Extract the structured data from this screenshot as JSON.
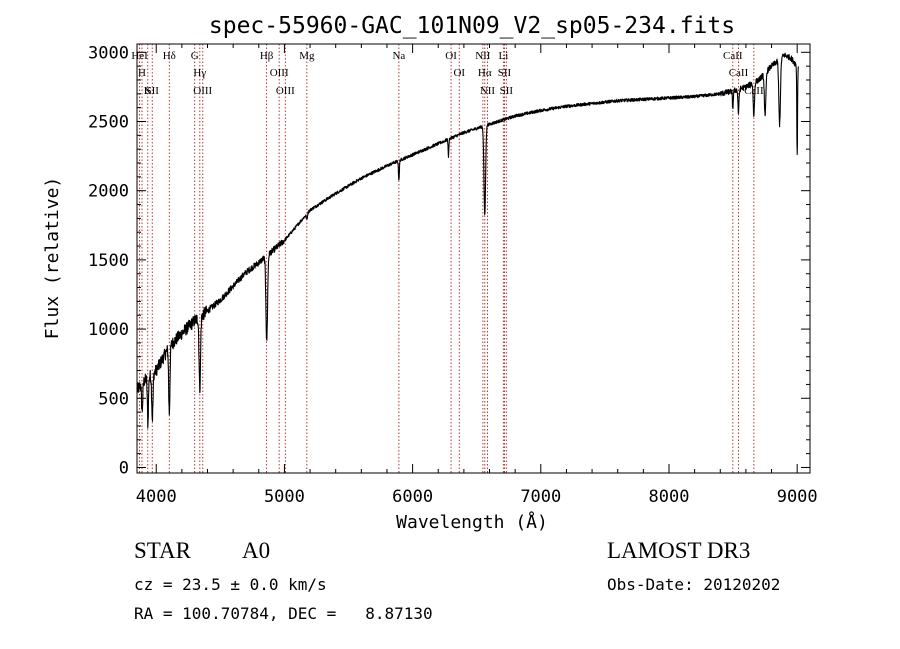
{
  "chart_data": {
    "type": "line",
    "title": "spec-55960-GAC_101N09_V2_sp05-234.fits",
    "xlabel": "Wavelength (Å)",
    "ylabel": "Flux (relative)",
    "xlim": [
      3850,
      9100
    ],
    "ylim": [
      -40,
      3060
    ],
    "x_ticks": [
      4000,
      5000,
      6000,
      7000,
      8000,
      9000
    ],
    "y_ticks": [
      0,
      500,
      1000,
      1500,
      2000,
      2500,
      3000
    ],
    "continuum": {
      "x": [
        3850,
        3900,
        4000,
        4100,
        4200,
        4300,
        4400,
        4500,
        4600,
        4700,
        4800,
        4900,
        5000,
        5100,
        5200,
        5400,
        5600,
        5800,
        6000,
        6200,
        6400,
        6500,
        6600,
        6700,
        6800,
        7000,
        7200,
        7400,
        7600,
        7800,
        8000,
        8200,
        8400,
        8500,
        8600,
        8700,
        8800,
        8900,
        8950,
        9000
      ],
      "y": [
        560,
        620,
        700,
        870,
        970,
        1060,
        1130,
        1210,
        1310,
        1410,
        1480,
        1560,
        1640,
        1750,
        1860,
        1980,
        2090,
        2180,
        2260,
        2340,
        2420,
        2450,
        2480,
        2510,
        2540,
        2580,
        2610,
        2630,
        2650,
        2660,
        2670,
        2680,
        2700,
        2720,
        2750,
        2800,
        2900,
        2980,
        2960,
        2900
      ]
    },
    "absorption_features": [
      {
        "x": 3890,
        "depth": 200,
        "width": 7
      },
      {
        "x": 3935,
        "depth": 330,
        "width": 6
      },
      {
        "x": 3970,
        "depth": 320,
        "width": 7
      },
      {
        "x": 4102,
        "depth": 480,
        "width": 7
      },
      {
        "x": 4340,
        "depth": 520,
        "width": 8
      },
      {
        "x": 4862,
        "depth": 620,
        "width": 9
      },
      {
        "x": 5175,
        "depth": 40,
        "width": 6
      },
      {
        "x": 5893,
        "depth": 140,
        "width": 5
      },
      {
        "x": 6280,
        "depth": 130,
        "width": 4
      },
      {
        "x": 6563,
        "depth": 640,
        "width": 9
      },
      {
        "x": 8498,
        "depth": 120,
        "width": 5
      },
      {
        "x": 8542,
        "depth": 170,
        "width": 6
      },
      {
        "x": 8662,
        "depth": 240,
        "width": 7
      },
      {
        "x": 8750,
        "depth": 320,
        "width": 8
      },
      {
        "x": 8863,
        "depth": 470,
        "width": 9
      },
      {
        "x": 9000,
        "depth": 650,
        "width": 4
      }
    ],
    "line_markers": [
      {
        "x": 3870,
        "label": "HeI"
      },
      {
        "x": 3889,
        "label": "H"
      },
      {
        "x": 3934,
        "label": "K"
      },
      {
        "x": 3969,
        "label": "SII"
      },
      {
        "x": 4102,
        "label": "Hδ"
      },
      {
        "x": 4300,
        "label": "G"
      },
      {
        "x": 4340,
        "label": "Hγ"
      },
      {
        "x": 4363,
        "label": "OIII"
      },
      {
        "x": 4861,
        "label": "Hβ"
      },
      {
        "x": 4959,
        "label": "OIII"
      },
      {
        "x": 5007,
        "label": "OIII"
      },
      {
        "x": 5175,
        "label": "Mg"
      },
      {
        "x": 5893,
        "label": "Na"
      },
      {
        "x": 6300,
        "label": "OI"
      },
      {
        "x": 6364,
        "label": "OI"
      },
      {
        "x": 6548,
        "label": "NII"
      },
      {
        "x": 6563,
        "label": "Hα"
      },
      {
        "x": 6584,
        "label": "NII"
      },
      {
        "x": 6708,
        "label": "Li"
      },
      {
        "x": 6717,
        "label": "SII"
      },
      {
        "x": 6731,
        "label": "SII"
      },
      {
        "x": 8498,
        "label": "CaII"
      },
      {
        "x": 8542,
        "label": "CaII"
      },
      {
        "x": 8662,
        "label": "CaII"
      }
    ],
    "legend": "none"
  },
  "info": {
    "class_label": "STAR",
    "subclass": "A0",
    "survey": "LAMOST DR3",
    "cz_text": "cz = 23.5 ± 0.0 km/s",
    "obs_date": "Obs-Date: 20120202",
    "coords_text": "RA = 100.70784, DEC =   8.87130"
  },
  "colors": {
    "spectrum": "#000000",
    "marker": "#b22222",
    "axes": "#000000",
    "background": "#ffffff"
  }
}
